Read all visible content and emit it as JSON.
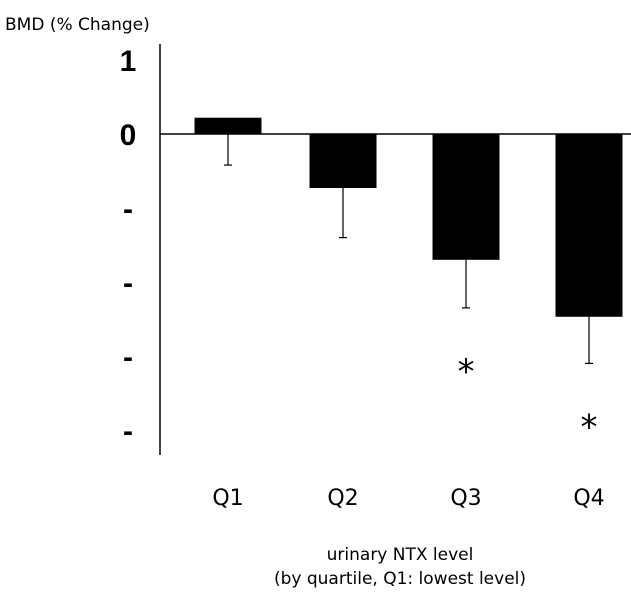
{
  "chart_data": {
    "type": "bar",
    "ylabel": "BMD (% Change)",
    "xlabel_lines": [
      "urinary NTX level",
      "(by quartile, Q1: lowest level)"
    ],
    "categories": [
      "Q1",
      "Q2",
      "Q3",
      "Q4"
    ],
    "values": [
      0.22,
      -0.73,
      -1.7,
      -2.47
    ],
    "error_low": [
      -0.42,
      -1.4,
      -2.35,
      -3.1
    ],
    "significance": [
      "",
      "",
      "*",
      "*"
    ],
    "ytick_values": [
      1,
      0,
      -1,
      -2,
      -3,
      -4
    ],
    "ytick_labels": [
      "1",
      "0",
      "-",
      "-",
      "-",
      "-"
    ],
    "ylim": [
      -4.3,
      1.1
    ],
    "bar_color": "#000000",
    "grid": false
  }
}
